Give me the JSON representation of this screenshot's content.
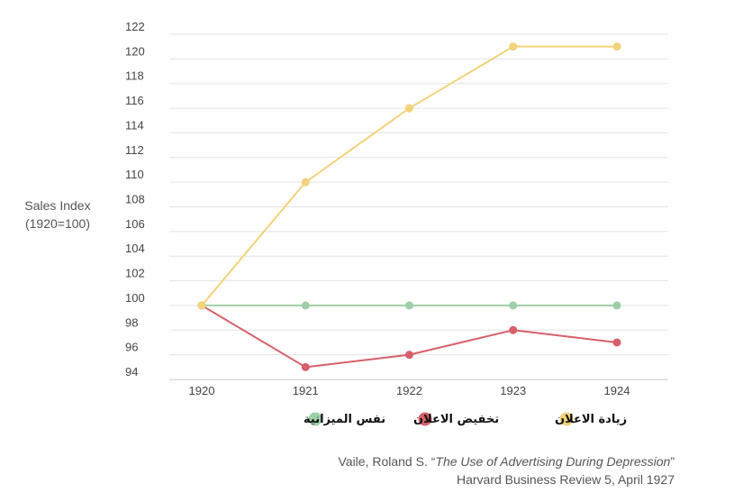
{
  "chart_data": {
    "type": "line",
    "x": [
      "1920",
      "1921",
      "1922",
      "1923",
      "1924"
    ],
    "series": [
      {
        "name": "زيادة الاعلان",
        "color": "#f2d27a",
        "values": [
          100,
          110,
          116,
          121,
          121
        ]
      },
      {
        "name": "نفس الميزانية",
        "color": "#9ecfa6",
        "values": [
          100,
          100,
          100,
          100,
          100
        ]
      },
      {
        "name": "تخفيض الاعلان",
        "color": "#d6606a",
        "values": [
          100,
          95,
          96,
          98,
          97
        ]
      }
    ],
    "ylabel_line1": "Sales Index",
    "ylabel_line2": "(1920=100)",
    "ylim": [
      94,
      122
    ],
    "yticks": [
      "94",
      "96",
      "98",
      "100",
      "102",
      "104",
      "106",
      "108",
      "110",
      "112",
      "114",
      "116",
      "118",
      "120",
      "122"
    ],
    "grid": true,
    "legend_position": "bottom"
  },
  "source": {
    "author": "Vaile, Roland S. “",
    "title": "The Use of Advertising During Depression",
    "close": "”",
    "line2": "Harvard Business Review 5, April 1927"
  }
}
